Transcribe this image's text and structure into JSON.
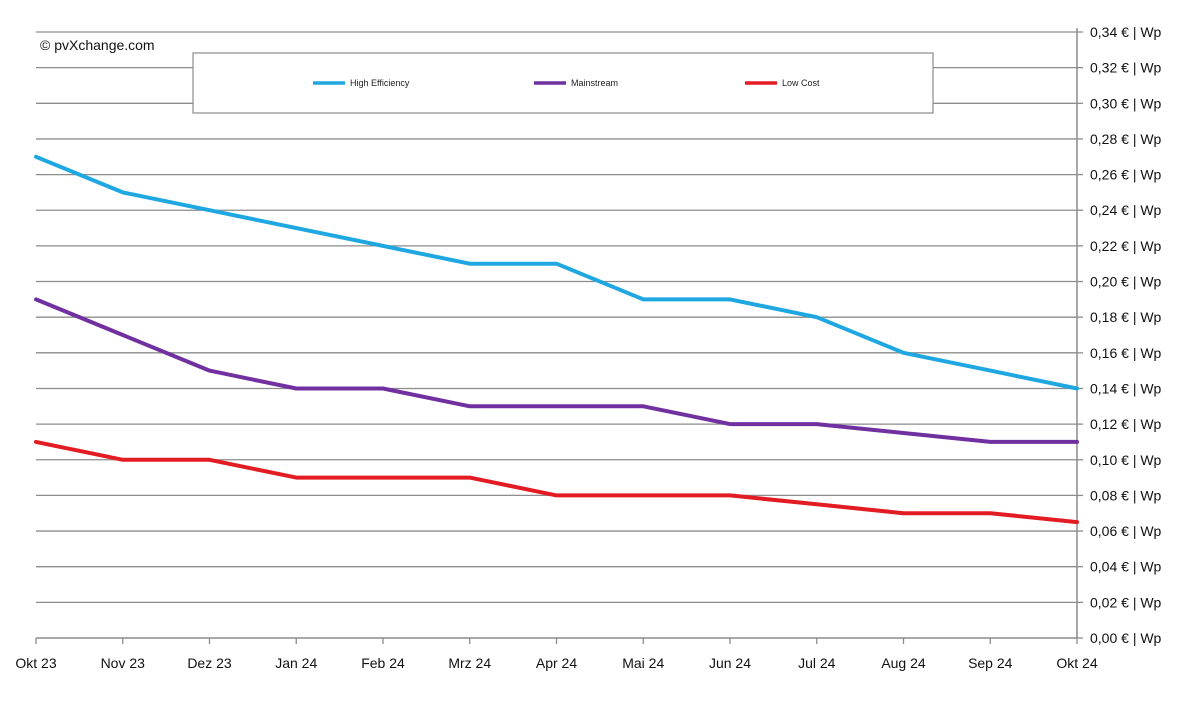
{
  "chart_data": {
    "type": "line",
    "title": "",
    "source": "© pvXchange.com",
    "categories": [
      "Okt 23",
      "Nov 23",
      "Dez 23",
      "Jan 24",
      "Feb 24",
      "Mrz 24",
      "Apr 24",
      "Mai 24",
      "Jun 24",
      "Jul 24",
      "Aug 24",
      "Sep 24",
      "Okt 24"
    ],
    "series": [
      {
        "name": "High Efficiency",
        "color": "#1ea7e1",
        "values": [
          0.27,
          0.25,
          0.24,
          0.23,
          0.22,
          0.21,
          0.21,
          0.19,
          0.19,
          0.18,
          0.16,
          0.15,
          0.14
        ]
      },
      {
        "name": "Mainstream",
        "color": "#7030a0",
        "values": [
          0.19,
          0.17,
          0.15,
          0.14,
          0.14,
          0.13,
          0.13,
          0.13,
          0.12,
          0.12,
          0.115,
          0.11,
          0.11
        ]
      },
      {
        "name": "Low Cost",
        "color": "#e31b23",
        "values": [
          0.11,
          0.1,
          0.1,
          0.09,
          0.09,
          0.09,
          0.08,
          0.08,
          0.08,
          0.075,
          0.07,
          0.07,
          0.065
        ]
      }
    ],
    "ylim": [
      0,
      0.34
    ],
    "ytick_step": 0.02,
    "ytick_labels": [
      "0,00 € | Wp",
      "0,02 € | Wp",
      "0,04 € | Wp",
      "0,06 € | Wp",
      "0,08 € | Wp",
      "0,10 € | Wp",
      "0,12 € | Wp",
      "0,14 € | Wp",
      "0,16 € | Wp",
      "0,18 € | Wp",
      "0,20 € | Wp",
      "0,22 € | Wp",
      "0,24 € | Wp",
      "0,26 € | Wp",
      "0,28 € | Wp",
      "0,30 € | Wp",
      "0,32 € | Wp",
      "0,34 € | Wp"
    ],
    "y_axis_side": "right",
    "grid": true,
    "legend_position": "top-center",
    "xlabel": "",
    "ylabel": ""
  }
}
